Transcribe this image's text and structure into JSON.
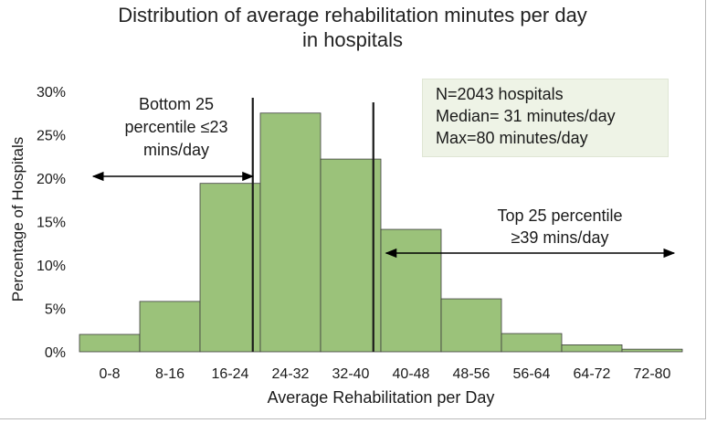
{
  "chart_data": {
    "type": "bar",
    "title": "Distribution of average rehabilitation minutes per day in hospitals",
    "title_lines": [
      "Distribution of average rehabilitation minutes per day",
      "in hospitals"
    ],
    "xlabel": "Average Rehabilitation per Day",
    "ylabel": "Percentage of Hospitals",
    "categories": [
      "0-8",
      "8-16",
      "16-24",
      "24-32",
      "32-40",
      "40-48",
      "48-56",
      "56-64",
      "64-72",
      "72-80"
    ],
    "values": [
      2,
      5.8,
      19.4,
      27.5,
      22.2,
      14.1,
      6.1,
      2.1,
      0.8,
      0.3
    ],
    "ylim": [
      0,
      30
    ],
    "yticks": [
      "0%",
      "5%",
      "10%",
      "15%",
      "20%",
      "25%",
      "30%"
    ],
    "ytick_values": [
      0,
      5,
      10,
      15,
      20,
      25,
      30
    ],
    "grid": false,
    "bar_color": "#9bc27a",
    "bar_edge_color": "#3d3d3d",
    "annotations": {
      "info_box": [
        "N=2043 hospitals",
        "Median= 31 minutes/day",
        "Max=80 minutes/day"
      ],
      "bottom_label": [
        "Bottom 25",
        "percentile ≤23",
        "mins/day"
      ],
      "top_label": [
        "Top 25 percentile",
        "≥39 mins/day"
      ],
      "bottom_cutoff_minutes": 23,
      "top_cutoff_minutes": 39
    }
  }
}
